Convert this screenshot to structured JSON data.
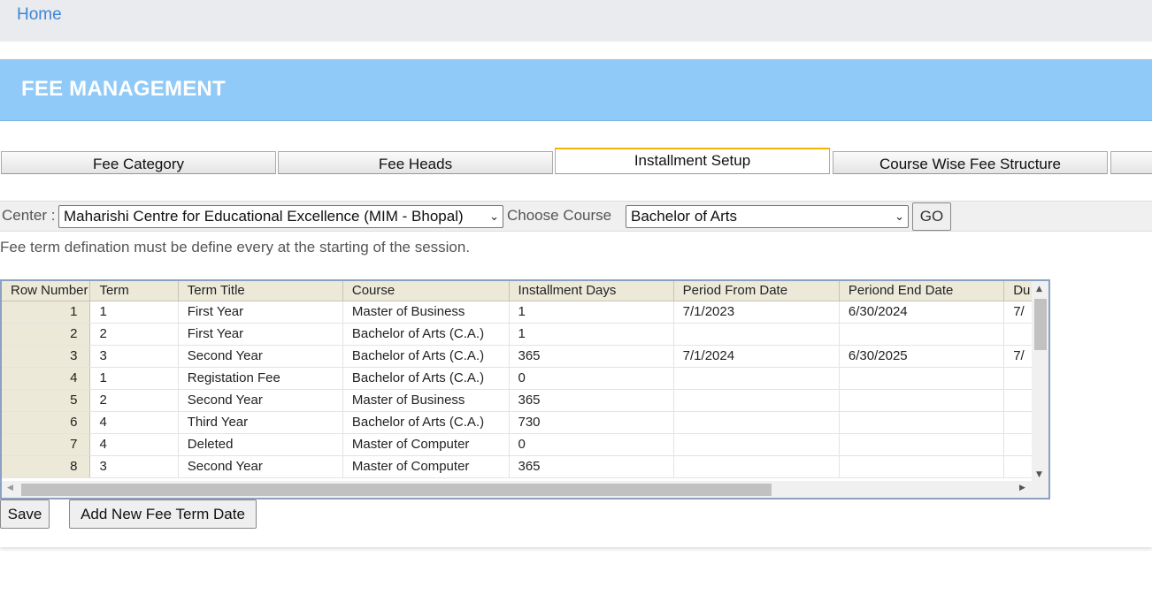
{
  "breadcrumb": {
    "home": "Home"
  },
  "header": {
    "title": "FEE MANAGEMENT"
  },
  "tabs": [
    {
      "label": "Fee Category",
      "active": false
    },
    {
      "label": "Fee Heads",
      "active": false
    },
    {
      "label": "Installment Setup",
      "active": true
    },
    {
      "label": "Course Wise Fee Structure",
      "active": false
    },
    {
      "label": "",
      "active": false
    }
  ],
  "filters": {
    "center_label": "Center :",
    "center_value": "Maharishi Centre for Educational Excellence (MIM - Bhopal)",
    "course_label": "Choose Course",
    "course_value": "Bachelor of Arts",
    "go_label": "GO"
  },
  "note": "Fee term defination must be define every at the starting of the session.",
  "grid": {
    "columns": [
      "Row Number",
      "Term",
      "Term Title",
      "Course",
      "Installment Days",
      "Period From Date",
      "Periond End Date",
      "Du"
    ],
    "rows": [
      [
        "1",
        "1",
        "First Year",
        "Master of Business",
        "1",
        "7/1/2023",
        "6/30/2024",
        "7/"
      ],
      [
        "2",
        "2",
        "First Year",
        "Bachelor of Arts (C.A.)",
        "1",
        "",
        "",
        ""
      ],
      [
        "3",
        "3",
        "Second Year",
        "Bachelor of Arts (C.A.)",
        "365",
        "7/1/2024",
        "6/30/2025",
        "7/"
      ],
      [
        "4",
        "1",
        "Registation Fee",
        "Bachelor of Arts (C.A.)",
        "0",
        "",
        "",
        ""
      ],
      [
        "5",
        "2",
        "Second Year",
        "Master of Business",
        "365",
        "",
        "",
        ""
      ],
      [
        "6",
        "4",
        "Third Year",
        "Bachelor of Arts (C.A.)",
        "730",
        "",
        "",
        ""
      ],
      [
        "7",
        "4",
        "Deleted",
        "Master of Computer",
        "0",
        "",
        "",
        ""
      ],
      [
        "8",
        "3",
        "Second Year",
        "Master of Computer",
        "365",
        "",
        "",
        ""
      ]
    ]
  },
  "actions": {
    "save": "Save",
    "add_new": "Add New Fee Term Date"
  },
  "colors": {
    "header_bg": "#90caf9",
    "active_tab_accent": "#f4b400",
    "link": "#3d86d8"
  }
}
